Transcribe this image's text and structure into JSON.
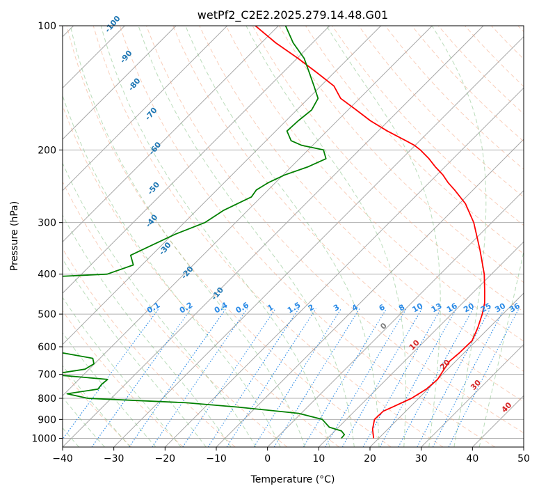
{
  "chart_data": {
    "type": "skew-t",
    "title": "wetPf2_C2E2.2025.279.14.48.G01",
    "xlabel": "Temperature (°C)",
    "ylabel": "Pressure (hPa)",
    "xlim": [
      -40,
      50
    ],
    "ylim": [
      1050,
      100
    ],
    "x_ticks": [
      "−40",
      "−30",
      "−20",
      "−10",
      "0",
      "10",
      "20",
      "30",
      "40",
      "50"
    ],
    "y_ticks": [
      "100",
      "200",
      "300",
      "400",
      "500",
      "600",
      "700",
      "800",
      "900",
      "1000"
    ],
    "grid": true,
    "series": [
      {
        "color": "#ff0000",
        "points": [
          [
            1000,
            19
          ],
          [
            950,
            17
          ],
          [
            900,
            15.5
          ],
          [
            860,
            15.6
          ],
          [
            840,
            16.6
          ],
          [
            800,
            18.6
          ],
          [
            760,
            19.7
          ],
          [
            720,
            20
          ],
          [
            680,
            19.3
          ],
          [
            650,
            18.8
          ],
          [
            620,
            19.1
          ],
          [
            580,
            19.2
          ],
          [
            540,
            17.8
          ],
          [
            500,
            16
          ],
          [
            470,
            14.3
          ],
          [
            440,
            12
          ],
          [
            400,
            8.6
          ],
          [
            350,
            3.1
          ],
          [
            300,
            -3.5
          ],
          [
            270,
            -8.8
          ],
          [
            250,
            -13.6
          ],
          [
            240,
            -16.3
          ],
          [
            230,
            -18.8
          ],
          [
            220,
            -21.8
          ],
          [
            210,
            -24.7
          ],
          [
            200,
            -28.1
          ],
          [
            195,
            -30.1
          ],
          [
            190,
            -32.7
          ],
          [
            180,
            -38.2
          ],
          [
            170,
            -43.5
          ],
          [
            160,
            -48.4
          ],
          [
            150,
            -53.7
          ],
          [
            140,
            -57.4
          ],
          [
            130,
            -63.3
          ],
          [
            120,
            -69.8
          ],
          [
            110,
            -77.2
          ],
          [
            100,
            -84.5
          ]
        ]
      },
      {
        "color": "#008000",
        "points": [
          [
            1000,
            12.7
          ],
          [
            980,
            12.6
          ],
          [
            960,
            11.3
          ],
          [
            940,
            8.2
          ],
          [
            900,
            5.3
          ],
          [
            870,
            -0.5
          ],
          [
            840,
            -13.6
          ],
          [
            820,
            -24.5
          ],
          [
            800,
            -44.6
          ],
          [
            780,
            -49.5
          ],
          [
            760,
            -44.4
          ],
          [
            740,
            -44.6
          ],
          [
            720,
            -44.4
          ],
          [
            700,
            -56.4
          ],
          [
            680,
            -50.8
          ],
          [
            660,
            -50.1
          ],
          [
            640,
            -51.4
          ],
          [
            620,
            -58.7
          ],
          [
            590,
            -68
          ],
          [
            570,
            -63.7
          ],
          [
            550,
            -62.8
          ],
          [
            520,
            -70
          ],
          [
            500,
            -83.8
          ],
          [
            470,
            -78.3
          ],
          [
            450,
            -74.5
          ],
          [
            440,
            -99
          ],
          [
            430,
            -108.8
          ],
          [
            410,
            -82
          ],
          [
            400,
            -65
          ],
          [
            380,
            -61.7
          ],
          [
            360,
            -64.1
          ],
          [
            340,
            -61.9
          ],
          [
            320,
            -59.5
          ],
          [
            300,
            -56
          ],
          [
            280,
            -54.7
          ],
          [
            260,
            -51.9
          ],
          [
            250,
            -52.3
          ],
          [
            240,
            -51.4
          ],
          [
            230,
            -49.7
          ],
          [
            220,
            -46.8
          ],
          [
            210,
            -44.8
          ],
          [
            200,
            -47
          ],
          [
            195,
            -52.1
          ],
          [
            190,
            -55.1
          ],
          [
            180,
            -57.8
          ],
          [
            170,
            -57.6
          ],
          [
            160,
            -57.1
          ],
          [
            150,
            -58.1
          ],
          [
            140,
            -61.3
          ],
          [
            130,
            -64.8
          ],
          [
            120,
            -68.6
          ],
          [
            110,
            -73.8
          ],
          [
            100,
            -78.6
          ]
        ]
      }
    ],
    "dry_adiabat_labels": [
      "-100",
      "-90",
      "-80",
      "-70",
      "-60",
      "-50",
      "-40",
      "-30",
      "-20",
      "-10"
    ],
    "mixing_ratio_labels": [
      "0.1",
      "0.2",
      "0.4",
      "0.6",
      "1",
      "1.5",
      "2",
      "3",
      "4",
      "6",
      "8",
      "10",
      "13",
      "16",
      "20",
      "25",
      "30",
      "36"
    ],
    "moist_adiabat_labels": [
      "0",
      "10",
      "20",
      "30",
      "40"
    ]
  }
}
